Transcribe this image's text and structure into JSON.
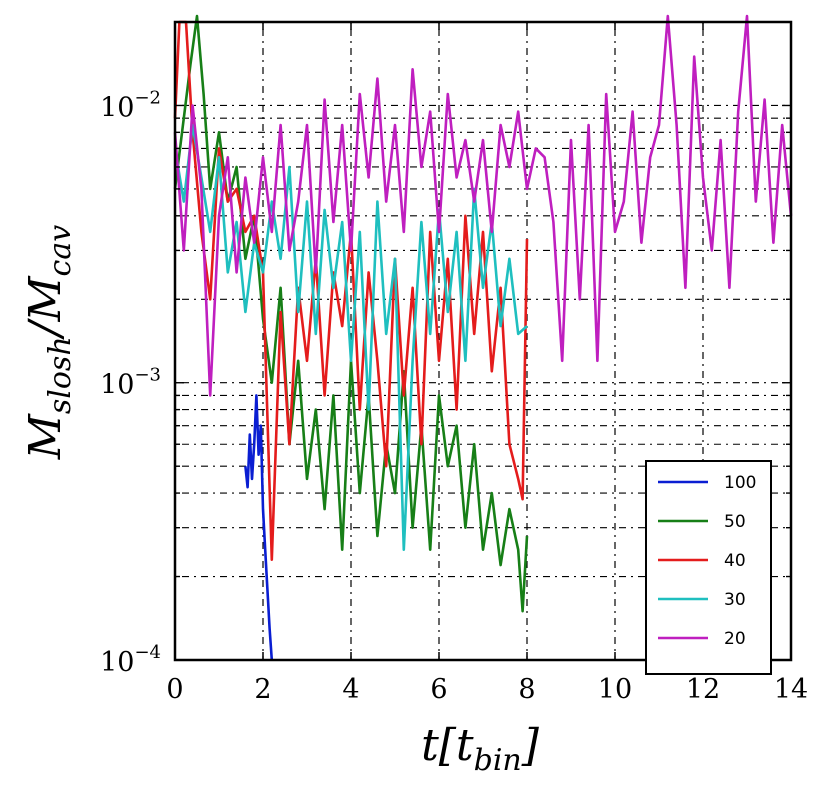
{
  "chart_data": {
    "type": "line",
    "xscale": "linear",
    "yscale": "log",
    "xlim": [
      0,
      14
    ],
    "ylim": [
      0.0001,
      0.02
    ],
    "grid": true,
    "x_ticks": [
      "0",
      "2",
      "4",
      "6",
      "8",
      "10",
      "12",
      "14"
    ],
    "y_ticks": [
      {
        "base": "10",
        "exp": "−4"
      },
      {
        "base": "10",
        "exp": "−3"
      },
      {
        "base": "10",
        "exp": "−2"
      }
    ],
    "xlabel": {
      "main": "t[t",
      "sub": "bin",
      "close": "]"
    },
    "ylabel": {
      "m1": "M",
      "s1": "slosh",
      "slash": "/M",
      "s2": "cav"
    },
    "legend_position": "lower-right",
    "series": [
      {
        "name": "100",
        "color": "#0a1ed2",
        "x": [
          1.6,
          1.65,
          1.7,
          1.75,
          1.8,
          1.85,
          1.9,
          1.95,
          2.0,
          2.05,
          2.1,
          2.15,
          2.2
        ],
        "y": [
          0.0005,
          0.00042,
          0.00065,
          0.00045,
          0.0006,
          0.0009,
          0.00055,
          0.0007,
          0.00035,
          0.00025,
          0.00018,
          0.00013,
          0.0001
        ]
      },
      {
        "name": "50",
        "color": "#177f17",
        "x": [
          0.0,
          0.2,
          0.35,
          0.5,
          0.65,
          0.8,
          1.0,
          1.2,
          1.4,
          1.6,
          1.8,
          2.0,
          2.2,
          2.4,
          2.6,
          2.8,
          3.0,
          3.2,
          3.4,
          3.6,
          3.8,
          4.0,
          4.2,
          4.4,
          4.6,
          4.8,
          5.0,
          5.2,
          5.4,
          5.6,
          5.8,
          6.0,
          6.2,
          6.4,
          6.6,
          6.8,
          7.0,
          7.2,
          7.4,
          7.6,
          7.8,
          7.9,
          8.0
        ],
        "y": [
          0.005,
          0.009,
          0.014,
          0.021,
          0.011,
          0.005,
          0.008,
          0.0045,
          0.006,
          0.0028,
          0.004,
          0.0017,
          0.001,
          0.0022,
          0.0006,
          0.0012,
          0.00045,
          0.0008,
          0.00035,
          0.0009,
          0.00025,
          0.0012,
          0.0004,
          0.0009,
          0.00028,
          0.0006,
          0.0004,
          0.0011,
          0.0003,
          0.0007,
          0.00025,
          0.0009,
          0.0005,
          0.0007,
          0.0003,
          0.0006,
          0.00025,
          0.0004,
          0.00022,
          0.00035,
          0.00025,
          0.00015,
          0.00028
        ]
      },
      {
        "name": "40",
        "color": "#e41c1c",
        "x": [
          0.0,
          0.1,
          0.25,
          0.4,
          0.6,
          0.8,
          1.0,
          1.2,
          1.4,
          1.6,
          1.8,
          2.0,
          2.2,
          2.4,
          2.6,
          2.8,
          3.0,
          3.2,
          3.4,
          3.6,
          3.8,
          4.0,
          4.2,
          4.4,
          4.6,
          4.8,
          5.0,
          5.2,
          5.4,
          5.6,
          5.8,
          6.0,
          6.2,
          6.4,
          6.6,
          6.8,
          7.0,
          7.2,
          7.4,
          7.6,
          7.8,
          7.9,
          8.0
        ],
        "y": [
          0.009,
          0.02,
          0.02,
          0.008,
          0.0035,
          0.002,
          0.007,
          0.0045,
          0.005,
          0.0035,
          0.004,
          0.0025,
          0.00023,
          0.0018,
          0.0006,
          0.0022,
          0.0012,
          0.0028,
          0.0009,
          0.0025,
          0.0016,
          0.0035,
          0.0008,
          0.0025,
          0.0012,
          0.0005,
          0.0028,
          0.0009,
          0.0022,
          0.0006,
          0.0035,
          0.0012,
          0.0028,
          0.0008,
          0.004,
          0.0015,
          0.0035,
          0.0011,
          0.0022,
          0.0006,
          0.00045,
          0.00038,
          0.0033
        ]
      },
      {
        "name": "30",
        "color": "#1fbfbf",
        "x": [
          0.0,
          0.2,
          0.4,
          0.6,
          0.8,
          1.0,
          1.2,
          1.4,
          1.6,
          1.8,
          2.0,
          2.2,
          2.4,
          2.6,
          2.8,
          3.0,
          3.2,
          3.4,
          3.6,
          3.8,
          4.0,
          4.2,
          4.4,
          4.6,
          4.8,
          5.0,
          5.2,
          5.4,
          5.6,
          5.8,
          6.0,
          6.2,
          6.4,
          6.6,
          6.8,
          7.0,
          7.2,
          7.4,
          7.6,
          7.8,
          8.0
        ],
        "y": [
          0.007,
          0.0045,
          0.0085,
          0.0055,
          0.0035,
          0.0065,
          0.0025,
          0.0038,
          0.0018,
          0.0032,
          0.0025,
          0.0045,
          0.0028,
          0.006,
          0.0018,
          0.0045,
          0.0015,
          0.0042,
          0.0022,
          0.0038,
          0.0012,
          0.0035,
          0.0008,
          0.0045,
          0.0015,
          0.0028,
          0.00025,
          0.0012,
          0.0038,
          0.0015,
          0.0042,
          0.0018,
          0.0035,
          0.0012,
          0.005,
          0.0022,
          0.0038,
          0.0016,
          0.0028,
          0.0015,
          0.0016
        ]
      },
      {
        "name": "20",
        "color": "#bf1fbf",
        "x": [
          0.0,
          0.2,
          0.4,
          0.6,
          0.8,
          1.0,
          1.2,
          1.4,
          1.6,
          1.8,
          2.0,
          2.2,
          2.4,
          2.6,
          2.8,
          3.0,
          3.2,
          3.4,
          3.6,
          3.8,
          4.0,
          4.2,
          4.4,
          4.6,
          4.8,
          5.0,
          5.2,
          5.4,
          5.6,
          5.8,
          6.0,
          6.2,
          6.4,
          6.6,
          6.8,
          7.0,
          7.2,
          7.4,
          7.6,
          7.8,
          8.0,
          8.2,
          8.4,
          8.6,
          8.8,
          9.0,
          9.2,
          9.4,
          9.6,
          9.8,
          10.0,
          10.2,
          10.4,
          10.6,
          10.8,
          11.0,
          11.2,
          11.4,
          11.6,
          11.8,
          12.0,
          12.2,
          12.4,
          12.6,
          12.8,
          13.0,
          13.2,
          13.4,
          13.6,
          13.8,
          14.0
        ],
        "y": [
          0.008,
          0.003,
          0.01,
          0.005,
          0.0009,
          0.004,
          0.0065,
          0.0025,
          0.0055,
          0.0032,
          0.0065,
          0.0035,
          0.0085,
          0.003,
          0.0045,
          0.0085,
          0.0025,
          0.0105,
          0.0038,
          0.0085,
          0.003,
          0.011,
          0.0055,
          0.0125,
          0.0045,
          0.0085,
          0.0035,
          0.0135,
          0.006,
          0.0095,
          0.0035,
          0.011,
          0.0055,
          0.0075,
          0.0045,
          0.0075,
          0.0035,
          0.0085,
          0.006,
          0.0095,
          0.005,
          0.007,
          0.0065,
          0.0038,
          0.0012,
          0.0075,
          0.002,
          0.0085,
          0.0012,
          0.011,
          0.0035,
          0.0045,
          0.0095,
          0.0032,
          0.0065,
          0.0085,
          0.021,
          0.0085,
          0.0022,
          0.015,
          0.0055,
          0.003,
          0.0075,
          0.0022,
          0.0095,
          0.021,
          0.0045,
          0.0105,
          0.0032,
          0.0085,
          0.004
        ]
      }
    ]
  }
}
